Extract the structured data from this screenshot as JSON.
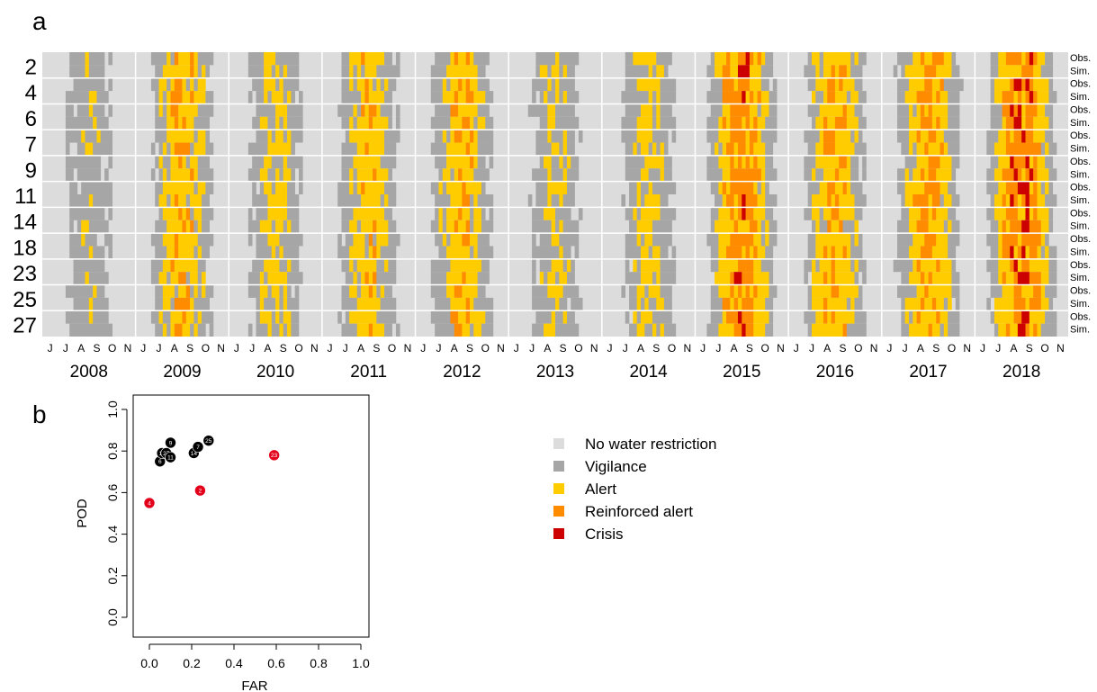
{
  "chart_data": [
    {
      "type": "heatmap",
      "panel_label": "a",
      "row_labels": [
        "2",
        "4",
        "6",
        "7",
        "9",
        "11",
        "14",
        "18",
        "23",
        "25",
        "27"
      ],
      "row_sublabels": [
        "Obs.",
        "Sim."
      ],
      "month_ticks": [
        "J",
        "J",
        "A",
        "S",
        "O",
        "N"
      ],
      "years": [
        "2008",
        "2009",
        "2010",
        "2011",
        "2012",
        "2013",
        "2014",
        "2015",
        "2016",
        "2017",
        "2018"
      ],
      "levels": [
        "No water restriction",
        "Vigilance",
        "Alert",
        "Reinforced alert",
        "Crisis"
      ],
      "colors": [
        "#dcdcdc",
        "#a6a6a6",
        "#ffcc00",
        "#ff8c00",
        "#cc0000"
      ],
      "year_intensity": [
        0.25,
        0.55,
        0.35,
        0.5,
        0.55,
        0.3,
        0.35,
        0.85,
        0.6,
        0.65,
        0.95
      ],
      "peak_months": [
        "A",
        "S"
      ]
    },
    {
      "type": "scatter",
      "panel_label": "b",
      "xlabel": "FAR",
      "ylabel": "POD",
      "xlim": [
        0,
        1
      ],
      "ylim": [
        0,
        1
      ],
      "xticks": [
        "0.0",
        "0.2",
        "0.4",
        "0.6",
        "0.8",
        "1.0"
      ],
      "yticks": [
        "0.0",
        "0.2",
        "0.4",
        "0.6",
        "0.8",
        "1.0"
      ],
      "points": [
        {
          "label": "6",
          "x": 0.05,
          "y": 0.75,
          "color": "#000000"
        },
        {
          "label": "18",
          "x": 0.06,
          "y": 0.79,
          "color": "#000000"
        },
        {
          "label": "27",
          "x": 0.08,
          "y": 0.79,
          "color": "#000000"
        },
        {
          "label": "11",
          "x": 0.1,
          "y": 0.77,
          "color": "#000000"
        },
        {
          "label": "9",
          "x": 0.1,
          "y": 0.84,
          "color": "#000000"
        },
        {
          "label": "14",
          "x": 0.21,
          "y": 0.79,
          "color": "#000000"
        },
        {
          "label": "7",
          "x": 0.23,
          "y": 0.82,
          "color": "#000000"
        },
        {
          "label": "25",
          "x": 0.28,
          "y": 0.85,
          "color": "#000000"
        },
        {
          "label": "4",
          "x": 0.0,
          "y": 0.55,
          "color": "#e3001b"
        },
        {
          "label": "2",
          "x": 0.24,
          "y": 0.61,
          "color": "#e3001b"
        },
        {
          "label": "23",
          "x": 0.59,
          "y": 0.78,
          "color": "#e3001b"
        }
      ]
    }
  ]
}
